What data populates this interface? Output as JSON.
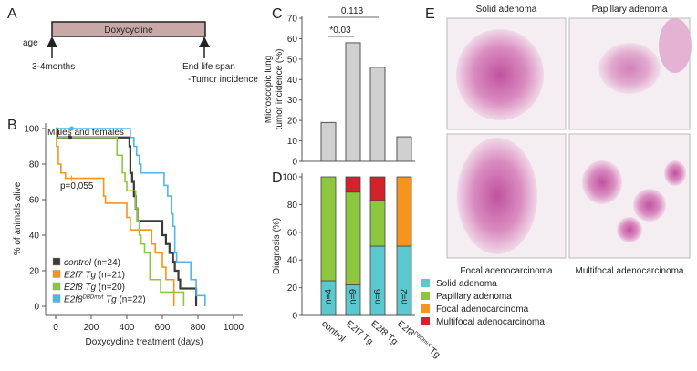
{
  "panels": {
    "a": "A",
    "b": "B",
    "c": "C",
    "d": "D",
    "e": "E"
  },
  "panel_a": {
    "bar_label": "Doxycycline",
    "age": "age",
    "start": "3-4months",
    "end1": "End life span",
    "end2": "-Tumor incidence",
    "bar_color": "#c9a9a7"
  },
  "chart_data": [
    {
      "type": "line",
      "panel": "B",
      "title": "Males and females",
      "xlabel": "Doxycycline treatment (days)",
      "ylabel": "% of animals alive",
      "xlim": [
        0,
        1000
      ],
      "ylim": [
        0,
        100
      ],
      "xticks": [
        "0",
        "200",
        "400",
        "600",
        "800",
        "1000"
      ],
      "yticks": [
        "0",
        "20",
        "40",
        "60",
        "80",
        "100"
      ],
      "annotation": "p=0,055",
      "series": [
        {
          "name": "control",
          "n": "(n=24)",
          "color": "#3a3a3a",
          "points": [
            [
              0,
              100
            ],
            [
              10,
              95
            ],
            [
              410,
              95
            ],
            [
              415,
              90
            ],
            [
              420,
              75
            ],
            [
              430,
              70
            ],
            [
              440,
              62
            ],
            [
              450,
              55
            ],
            [
              460,
              48
            ],
            [
              590,
              48
            ],
            [
              600,
              40
            ],
            [
              620,
              35
            ],
            [
              640,
              30
            ],
            [
              660,
              25
            ],
            [
              670,
              20
            ],
            [
              690,
              15
            ],
            [
              700,
              10
            ],
            [
              790,
              10
            ],
            [
              790,
              0
            ]
          ]
        },
        {
          "name": "E2f7 Tg",
          "n": "(n=21)",
          "color": "#f7941d",
          "points": [
            [
              0,
              100
            ],
            [
              5,
              90
            ],
            [
              15,
              80
            ],
            [
              30,
              75
            ],
            [
              55,
              72
            ],
            [
              260,
              72
            ],
            [
              270,
              62
            ],
            [
              280,
              58
            ],
            [
              390,
              58
            ],
            [
              400,
              50
            ],
            [
              420,
              43
            ],
            [
              530,
              43
            ],
            [
              540,
              35
            ],
            [
              560,
              30
            ],
            [
              600,
              22
            ],
            [
              620,
              15
            ],
            [
              660,
              15
            ],
            [
              665,
              0
            ]
          ]
        },
        {
          "name": "E2f8 Tg",
          "n": "(n=20)",
          "color": "#8dc63f",
          "points": [
            [
              0,
              95
            ],
            [
              335,
              95
            ],
            [
              345,
              85
            ],
            [
              375,
              75
            ],
            [
              390,
              70
            ],
            [
              400,
              65
            ],
            [
              450,
              55
            ],
            [
              460,
              48
            ],
            [
              470,
              40
            ],
            [
              480,
              35
            ],
            [
              500,
              30
            ],
            [
              530,
              25
            ],
            [
              530,
              15
            ],
            [
              590,
              8
            ],
            [
              720,
              8
            ],
            [
              720,
              0
            ]
          ]
        },
        {
          "name": "E2f8DBDmut Tg",
          "n": "(n=22)",
          "color": "#4db8e8",
          "points": [
            [
              0,
              100
            ],
            [
              410,
              100
            ],
            [
              420,
              95
            ],
            [
              440,
              90
            ],
            [
              455,
              85
            ],
            [
              470,
              80
            ],
            [
              480,
              75
            ],
            [
              600,
              75
            ],
            [
              610,
              68
            ],
            [
              630,
              62
            ],
            [
              650,
              52
            ],
            [
              660,
              45
            ],
            [
              670,
              30
            ],
            [
              680,
              25
            ],
            [
              740,
              25
            ],
            [
              760,
              15
            ],
            [
              790,
              6
            ],
            [
              840,
              6
            ],
            [
              840,
              0
            ]
          ]
        }
      ]
    },
    {
      "type": "bar",
      "panel": "C",
      "ylabel": "Microscopic lung tumor incidence (%)",
      "categories": [
        "control",
        "E2f7 Tg",
        "E2f8 Tg",
        "E2f8DBDmut Tg"
      ],
      "values": [
        19,
        58,
        46,
        12
      ],
      "ylim": [
        0,
        70
      ],
      "yticks": [
        "0",
        "10",
        "20",
        "30",
        "40",
        "50",
        "60",
        "70"
      ],
      "annotations": [
        {
          "text": "0.113",
          "from": "control",
          "to": "E2f8 Tg"
        },
        {
          "text": "*0.03",
          "from": "control",
          "to": "E2f7 Tg"
        }
      ]
    },
    {
      "type": "bar",
      "stacked": true,
      "panel": "D",
      "ylabel": "Diagnosis (%)",
      "categories": [
        "control",
        "E2f7 Tg",
        "E2f8 Tg",
        "E2f8DBDmut Tg"
      ],
      "n_labels": [
        "n=4",
        "n=9",
        "n=6",
        "n=2"
      ],
      "ylim": [
        0,
        100
      ],
      "yticks": [
        "0",
        "20",
        "40",
        "60",
        "80",
        "100"
      ],
      "series": [
        {
          "name": "Solid adenoma",
          "color": "#5bc8d0",
          "values": [
            25,
            22,
            50,
            50
          ]
        },
        {
          "name": "Papillary adenoma",
          "color": "#8dc63f",
          "values": [
            75,
            67,
            33,
            0
          ]
        },
        {
          "name": "Focal adenocarcinoma",
          "color": "#f7941d",
          "values": [
            0,
            0,
            0,
            50
          ]
        },
        {
          "name": "Multifocal adenocarcinoma",
          "color": "#d2232a",
          "values": [
            0,
            11,
            17,
            0
          ]
        }
      ]
    }
  ],
  "panel_e": {
    "labels": [
      "Solid adenoma",
      "Papillary adenoma",
      "Focal adenocarcinoma",
      "Multifocal adenocarcinoma"
    ]
  }
}
